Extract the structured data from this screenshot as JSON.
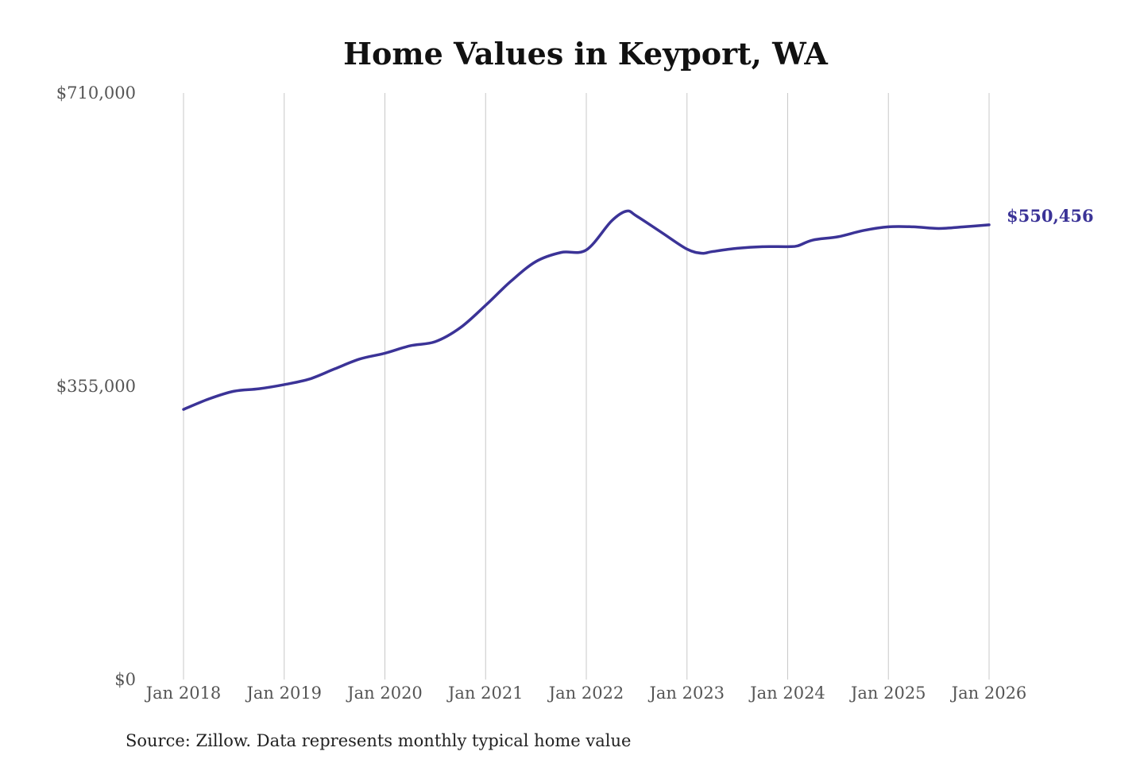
{
  "chart_data": {
    "type": "line",
    "title": "Home Values in Keyport, WA",
    "xlabel": "",
    "ylabel": "",
    "ylim": [
      0,
      710000
    ],
    "xlim": [
      2018,
      2026
    ],
    "y_ticks": [
      {
        "value": 0,
        "label": "$0"
      },
      {
        "value": 355000,
        "label": "$355,000"
      },
      {
        "value": 710000,
        "label": "$710,000"
      }
    ],
    "x_ticks": [
      {
        "value": 2018,
        "label": "Jan 2018"
      },
      {
        "value": 2019,
        "label": "Jan 2019"
      },
      {
        "value": 2020,
        "label": "Jan 2020"
      },
      {
        "value": 2021,
        "label": "Jan 2021"
      },
      {
        "value": 2022,
        "label": "Jan 2022"
      },
      {
        "value": 2023,
        "label": "Jan 2023"
      },
      {
        "value": 2024,
        "label": "Jan 2024"
      },
      {
        "value": 2025,
        "label": "Jan 2025"
      },
      {
        "value": 2026,
        "label": "Jan 2026"
      }
    ],
    "grid": "vertical",
    "series": [
      {
        "name": "Typical home value",
        "color": "#3b3397",
        "x": [
          2018.0,
          2018.25,
          2018.5,
          2018.75,
          2019.0,
          2019.25,
          2019.5,
          2019.75,
          2020.0,
          2020.25,
          2020.5,
          2020.75,
          2021.0,
          2021.25,
          2021.5,
          2021.75,
          2022.0,
          2022.25,
          2022.4,
          2022.5,
          2022.75,
          2023.0,
          2023.15,
          2023.25,
          2023.5,
          2023.75,
          2024.0,
          2024.1,
          2024.25,
          2024.5,
          2024.75,
          2025.0,
          2025.25,
          2025.5,
          2025.75,
          2026.0
        ],
        "values": [
          327000,
          339600,
          349000,
          352000,
          357000,
          363700,
          376000,
          388000,
          395000,
          404000,
          409000,
          426000,
          453000,
          482000,
          506000,
          517000,
          520000,
          555000,
          567000,
          561000,
          541000,
          521000,
          516000,
          518000,
          522000,
          524000,
          524000,
          525000,
          532000,
          536000,
          543500,
          548000,
          548000,
          546000,
          548000,
          550456
        ]
      }
    ],
    "end_label": "$550,456",
    "source": "Source: Zillow. Data represents monthly typical home value"
  }
}
